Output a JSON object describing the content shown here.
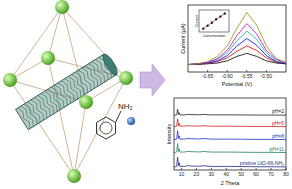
{
  "diagram": {
    "amine_label": "NH₂"
  },
  "chart_data": [
    {
      "type": "line",
      "xlabel": "Potential (V)",
      "ylabel": "Current (μA)",
      "x": [
        -0.7,
        -0.675,
        -0.65,
        -0.625,
        -0.6,
        -0.575,
        -0.55,
        -0.525,
        -0.5,
        -0.475,
        -0.45
      ],
      "xlim": [
        -0.7,
        -0.45
      ],
      "xticks": [
        -0.65,
        {
          "value": -0.6,
          "label": "-0.60"
        },
        -0.55,
        {
          "value": -0.5,
          "label": "-0.50"
        }
      ],
      "ylim": [
        0,
        9
      ],
      "tick_labels": "x",
      "series": [
        {
          "color": "#000000",
          "values": [
            1.0,
            1.0,
            1.1,
            1.2,
            1.5,
            2.1,
            2.5,
            2.1,
            1.5,
            1.2,
            1.1
          ]
        },
        {
          "color": "#e00000",
          "values": [
            1.0,
            1.1,
            1.2,
            1.4,
            1.9,
            2.8,
            3.5,
            2.9,
            1.9,
            1.3,
            1.1
          ]
        },
        {
          "color": "#0000e0",
          "values": [
            1.0,
            1.1,
            1.2,
            1.5,
            2.2,
            3.5,
            4.5,
            3.6,
            2.2,
            1.4,
            1.1
          ]
        },
        {
          "color": "#00b0b0",
          "values": [
            1.0,
            1.1,
            1.3,
            1.7,
            2.6,
            4.2,
            5.5,
            4.4,
            2.6,
            1.5,
            1.2
          ]
        },
        {
          "color": "#d000d0",
          "values": [
            1.0,
            1.1,
            1.3,
            1.8,
            2.9,
            4.9,
            6.5,
            5.1,
            2.9,
            1.7,
            1.2
          ]
        },
        {
          "color": "#909000",
          "values": [
            1.0,
            1.1,
            1.4,
            2.1,
            3.5,
            5.9,
            8.0,
            6.3,
            3.5,
            1.8,
            1.3
          ]
        }
      ],
      "inset": {
        "type": "scatter",
        "xlabel": "Concentration",
        "ylabel": "Current",
        "x": [
          1,
          2,
          3,
          4,
          5,
          6
        ],
        "values": [
          1.2,
          2.3,
          3.4,
          4.6,
          5.6,
          6.7
        ],
        "xlim": [
          0,
          7
        ],
        "ylim": [
          0,
          8
        ],
        "tick_labels": false,
        "color": "#000000",
        "marker": "square",
        "line_style": "solid"
      }
    },
    {
      "type": "line",
      "xlabel": "2 Theta",
      "ylabel": "Intensity",
      "x": [
        5,
        6.8,
        7.4,
        8,
        8.5,
        9,
        12,
        14,
        17,
        22,
        25.7,
        26.5,
        30,
        33,
        43,
        50,
        60,
        70,
        80
      ],
      "xlim": [
        5,
        80
      ],
      "xticks": [
        10,
        20,
        30,
        40,
        50,
        60,
        70,
        80
      ],
      "ylim": [
        0,
        100
      ],
      "tick_labels": "x",
      "series": [
        {
          "name": "pH=2",
          "color": "#202020",
          "values": [
            76,
            76.6,
            84.4,
            77.2,
            79.6,
            76.6,
            76.6,
            77.2,
            76.9,
            76.7,
            77.2,
            76.9,
            76.6,
            76.6,
            76.6,
            76.5,
            76.3,
            76.3,
            76.2
          ]
        },
        {
          "name": "pH=5",
          "color": "#d02020",
          "values": [
            60,
            60.8,
            71.2,
            61.6,
            64.8,
            60.8,
            60.8,
            61.6,
            61.2,
            61,
            61.6,
            61.2,
            60.8,
            60.8,
            60.8,
            60.6,
            60.4,
            60.4,
            60.2
          ]
        },
        {
          "name": "pH=8",
          "color": "#2030d0",
          "values": [
            42,
            43,
            54.6,
            43.8,
            47.4,
            42.9,
            42.9,
            43.8,
            43.4,
            43.1,
            43.8,
            43.4,
            42.9,
            42.9,
            42.9,
            42.7,
            42.5,
            42.5,
            42.3
          ]
        },
        {
          "name": "pH=11",
          "color": "#208060",
          "values": [
            24,
            25,
            36.6,
            25.8,
            29.4,
            24.9,
            24.9,
            25.8,
            25.4,
            25.1,
            25.8,
            25.4,
            24.9,
            24.9,
            24.9,
            24.7,
            24.5,
            24.5,
            24.3
          ]
        },
        {
          "name": "pristine UiO-66-NH₂",
          "color": "#1a2a80",
          "values": [
            4,
            5,
            18,
            6,
            10,
            5,
            5,
            6,
            5.5,
            5.2,
            6,
            5.5,
            5,
            5,
            5,
            4.8,
            4.5,
            4.5,
            4.3
          ]
        }
      ]
    }
  ]
}
